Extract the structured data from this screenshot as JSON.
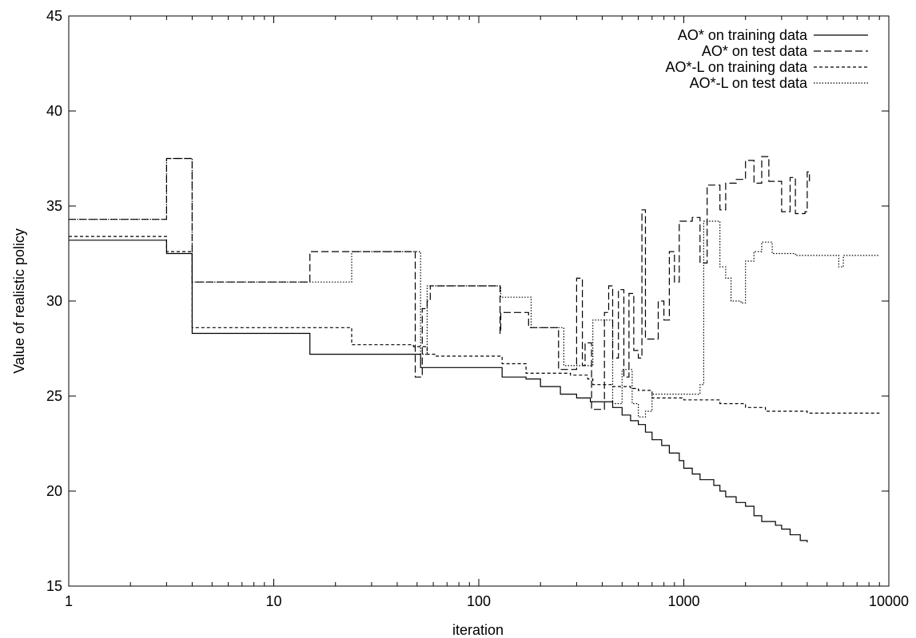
{
  "chart_data": {
    "type": "line",
    "title": "",
    "xlabel": "iteration",
    "ylabel": "Value of realistic policy",
    "xscale": "log",
    "xlim": [
      1,
      10000
    ],
    "ylim": [
      15,
      45
    ],
    "x_ticks": [
      1,
      10,
      100,
      1000,
      10000
    ],
    "x_tick_labels": [
      "1",
      "10",
      "100",
      "1000",
      "10000"
    ],
    "y_ticks": [
      15,
      20,
      25,
      30,
      35,
      40,
      45
    ],
    "y_tick_labels": [
      "15",
      "20",
      "25",
      "30",
      "35",
      "40",
      "45"
    ],
    "grid": false,
    "legend_position": "top-right",
    "series": [
      {
        "name": "AO* on training data",
        "dash": "solid",
        "color": "#000000",
        "points": [
          [
            1,
            33.2
          ],
          [
            2,
            33.2
          ],
          [
            3,
            32.5
          ],
          [
            4,
            28.3
          ],
          [
            14,
            28.3
          ],
          [
            15,
            27.2
          ],
          [
            48,
            27.2
          ],
          [
            52,
            26.5
          ],
          [
            125,
            26.5
          ],
          [
            130,
            26.0
          ],
          [
            165,
            26.0
          ],
          [
            170,
            25.9
          ],
          [
            195,
            25.9
          ],
          [
            200,
            25.5
          ],
          [
            250,
            25.1
          ],
          [
            300,
            24.9
          ],
          [
            350,
            24.7
          ],
          [
            400,
            24.7
          ],
          [
            450,
            24.4
          ],
          [
            500,
            24.0
          ],
          [
            550,
            23.7
          ],
          [
            600,
            23.5
          ],
          [
            650,
            23.1
          ],
          [
            700,
            22.7
          ],
          [
            780,
            22.4
          ],
          [
            850,
            22.0
          ],
          [
            950,
            21.6
          ],
          [
            1000,
            21.2
          ],
          [
            1100,
            20.9
          ],
          [
            1200,
            20.6
          ],
          [
            1400,
            20.3
          ],
          [
            1500,
            20.0
          ],
          [
            1600,
            19.7
          ],
          [
            1800,
            19.4
          ],
          [
            2000,
            19.2
          ],
          [
            2200,
            18.7
          ],
          [
            2400,
            18.4
          ],
          [
            2800,
            18.2
          ],
          [
            3000,
            18.0
          ],
          [
            3300,
            17.7
          ],
          [
            3700,
            17.4
          ],
          [
            4000,
            17.3
          ]
        ]
      },
      {
        "name": "AO* on test data",
        "dash": "long-dash",
        "color": "#000000",
        "points": [
          [
            1,
            34.3
          ],
          [
            2,
            34.3
          ],
          [
            3,
            37.5
          ],
          [
            4,
            31.0
          ],
          [
            14,
            31.0
          ],
          [
            15,
            32.6
          ],
          [
            48,
            32.6
          ],
          [
            49,
            26.0
          ],
          [
            52,
            26.0
          ],
          [
            53,
            29.6
          ],
          [
            56,
            30.0
          ],
          [
            58,
            30.8
          ],
          [
            125,
            30.8
          ],
          [
            127,
            28.3
          ],
          [
            128,
            29.4
          ],
          [
            160,
            29.4
          ],
          [
            175,
            28.6
          ],
          [
            200,
            28.6
          ],
          [
            245,
            26.4
          ],
          [
            290,
            26.4
          ],
          [
            300,
            31.2
          ],
          [
            320,
            26.6
          ],
          [
            330,
            27.8
          ],
          [
            355,
            24.3
          ],
          [
            390,
            24.3
          ],
          [
            410,
            29.4
          ],
          [
            430,
            30.8
          ],
          [
            450,
            27.0
          ],
          [
            480,
            30.6
          ],
          [
            510,
            26.0
          ],
          [
            540,
            30.4
          ],
          [
            570,
            27.4
          ],
          [
            600,
            27.0
          ],
          [
            625,
            34.8
          ],
          [
            650,
            28.0
          ],
          [
            720,
            28.0
          ],
          [
            750,
            30.0
          ],
          [
            800,
            29.0
          ],
          [
            850,
            32.6
          ],
          [
            900,
            31.0
          ],
          [
            950,
            34.2
          ],
          [
            1100,
            34.4
          ],
          [
            1200,
            32.0
          ],
          [
            1300,
            36.1
          ],
          [
            1500,
            34.8
          ],
          [
            1600,
            36.2
          ],
          [
            1800,
            36.4
          ],
          [
            2000,
            37.4
          ],
          [
            2200,
            36.2
          ],
          [
            2400,
            37.6
          ],
          [
            2600,
            36.3
          ],
          [
            2900,
            36.3
          ],
          [
            3000,
            34.7
          ],
          [
            3300,
            36.5
          ],
          [
            3500,
            34.6
          ],
          [
            3900,
            34.7
          ],
          [
            4000,
            36.8
          ],
          [
            4100,
            36.3
          ]
        ]
      },
      {
        "name": "AO*-L on training data",
        "dash": "short-dash",
        "color": "#000000",
        "points": [
          [
            1,
            33.4
          ],
          [
            2,
            33.4
          ],
          [
            3,
            32.6
          ],
          [
            4,
            28.6
          ],
          [
            23,
            28.6
          ],
          [
            24,
            27.7
          ],
          [
            48,
            27.6
          ],
          [
            52,
            27.6
          ],
          [
            56,
            27.2
          ],
          [
            62,
            27.1
          ],
          [
            125,
            27.1
          ],
          [
            130,
            26.7
          ],
          [
            165,
            26.7
          ],
          [
            170,
            26.2
          ],
          [
            250,
            26.2
          ],
          [
            280,
            26.1
          ],
          [
            340,
            25.9
          ],
          [
            360,
            25.6
          ],
          [
            450,
            25.5
          ],
          [
            550,
            25.4
          ],
          [
            600,
            25.3
          ],
          [
            700,
            24.9
          ],
          [
            1000,
            24.8
          ],
          [
            1500,
            24.6
          ],
          [
            2000,
            24.4
          ],
          [
            2500,
            24.2
          ],
          [
            4000,
            24.1
          ],
          [
            9000,
            24.1
          ]
        ]
      },
      {
        "name": "AO*-L on test data",
        "dash": "dotted",
        "color": "#000000",
        "points": [
          [
            1,
            34.3
          ],
          [
            2,
            34.3
          ],
          [
            3,
            37.5
          ],
          [
            4,
            31.0
          ],
          [
            23,
            31.0
          ],
          [
            24,
            32.6
          ],
          [
            48,
            32.6
          ],
          [
            52,
            27.2
          ],
          [
            56,
            30.8
          ],
          [
            125,
            30.8
          ],
          [
            128,
            30.2
          ],
          [
            175,
            30.2
          ],
          [
            180,
            28.6
          ],
          [
            250,
            28.6
          ],
          [
            260,
            26.6
          ],
          [
            330,
            26.6
          ],
          [
            360,
            29.0
          ],
          [
            430,
            29.0
          ],
          [
            450,
            24.6
          ],
          [
            500,
            26.4
          ],
          [
            560,
            24.6
          ],
          [
            600,
            23.9
          ],
          [
            650,
            24.2
          ],
          [
            700,
            25.1
          ],
          [
            1100,
            25.1
          ],
          [
            1200,
            25.6
          ],
          [
            1250,
            34.2
          ],
          [
            1450,
            34.2
          ],
          [
            1500,
            31.8
          ],
          [
            1600,
            31.2
          ],
          [
            1700,
            30.0
          ],
          [
            1900,
            29.9
          ],
          [
            2000,
            32.1
          ],
          [
            2200,
            32.6
          ],
          [
            2400,
            33.1
          ],
          [
            2700,
            32.5
          ],
          [
            3500,
            32.4
          ],
          [
            5500,
            32.4
          ],
          [
            5700,
            31.8
          ],
          [
            6000,
            32.4
          ],
          [
            9000,
            32.4
          ]
        ]
      }
    ]
  }
}
